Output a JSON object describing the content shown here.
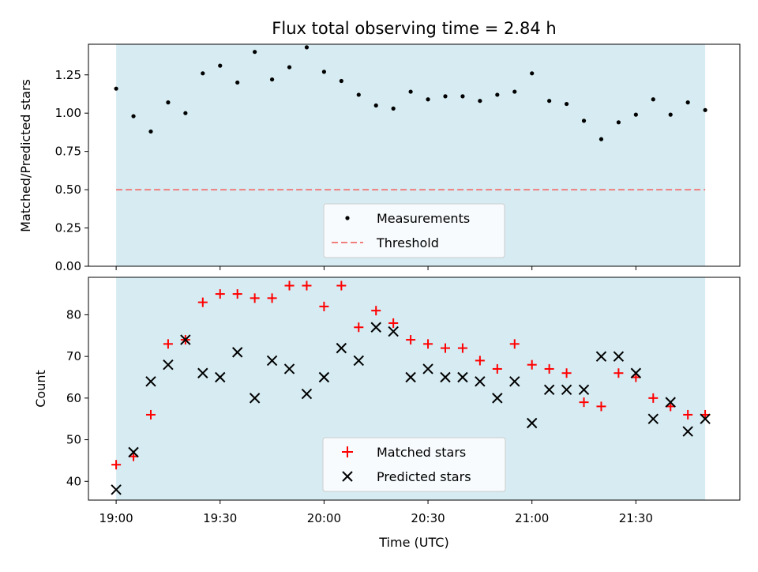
{
  "chart_data": [
    {
      "type": "scatter",
      "title": "Flux total observing time = 2.84 h",
      "xlabel": "",
      "ylabel": "Matched/Predicted stars",
      "ylim": [
        0,
        1.45
      ],
      "yticks": [
        "0.00",
        "0.25",
        "0.50",
        "0.75",
        "1.00",
        "1.25"
      ],
      "x_axis": {
        "type": "time",
        "start": "18:52",
        "end": "22:00"
      },
      "shaded_region": {
        "start": "19:00",
        "end": "21:50",
        "color": "#add8e6"
      },
      "series": [
        {
          "name": "Measurements",
          "marker": "dot",
          "color": "#000000",
          "x": [
            "19:00",
            "19:05",
            "19:10",
            "19:15",
            "19:20",
            "19:25",
            "19:30",
            "19:35",
            "19:40",
            "19:45",
            "19:50",
            "19:55",
            "20:00",
            "20:05",
            "20:10",
            "20:15",
            "20:20",
            "20:25",
            "20:30",
            "20:35",
            "20:40",
            "20:45",
            "20:50",
            "20:55",
            "21:00",
            "21:05",
            "21:10",
            "21:15",
            "21:20",
            "21:25",
            "21:30",
            "21:35",
            "21:40",
            "21:45",
            "21:50"
          ],
          "y": [
            1.16,
            0.98,
            0.88,
            1.07,
            1.0,
            1.26,
            1.31,
            1.2,
            1.4,
            1.22,
            1.3,
            1.43,
            1.27,
            1.21,
            1.12,
            1.05,
            1.03,
            1.14,
            1.09,
            1.11,
            1.11,
            1.08,
            1.12,
            1.14,
            1.26,
            1.08,
            1.06,
            0.95,
            0.83,
            0.94,
            0.99,
            1.09,
            0.99,
            1.07,
            1.02
          ]
        },
        {
          "name": "Threshold",
          "marker": "dashed-line",
          "color": "#f08080",
          "y_const": 0.5,
          "x_span": [
            "19:00",
            "21:50"
          ]
        }
      ],
      "legend": {
        "placement": "lower-center"
      }
    },
    {
      "type": "scatter",
      "title": "",
      "xlabel": "Time (UTC)",
      "ylabel": "Count",
      "ylim": [
        35.5,
        89
      ],
      "yticks": [
        "40",
        "50",
        "60",
        "70",
        "80"
      ],
      "x_axis": {
        "type": "time",
        "start": "18:52",
        "end": "22:00"
      },
      "xticks": [
        "19:00",
        "19:30",
        "20:00",
        "20:30",
        "21:00",
        "21:30"
      ],
      "shaded_region": {
        "start": "19:00",
        "end": "21:50",
        "color": "#add8e6"
      },
      "series": [
        {
          "name": "Matched stars",
          "marker": "plus",
          "color": "#ff0000",
          "x": [
            "19:00",
            "19:05",
            "19:10",
            "19:15",
            "19:20",
            "19:25",
            "19:30",
            "19:35",
            "19:40",
            "19:45",
            "19:50",
            "19:55",
            "20:00",
            "20:05",
            "20:10",
            "20:15",
            "20:20",
            "20:25",
            "20:30",
            "20:35",
            "20:40",
            "20:45",
            "20:50",
            "20:55",
            "21:00",
            "21:05",
            "21:10",
            "21:15",
            "21:20",
            "21:25",
            "21:30",
            "21:35",
            "21:40",
            "21:45",
            "21:50"
          ],
          "y": [
            44,
            46,
            56,
            73,
            74,
            83,
            85,
            85,
            84,
            84,
            87,
            87,
            82,
            87,
            77,
            81,
            78,
            74,
            73,
            72,
            72,
            69,
            67,
            73,
            68,
            67,
            66,
            59,
            58,
            66,
            65,
            60,
            58,
            56,
            56
          ]
        },
        {
          "name": "Predicted stars",
          "marker": "x",
          "color": "#000000",
          "x": [
            "19:00",
            "19:05",
            "19:10",
            "19:15",
            "19:20",
            "19:25",
            "19:30",
            "19:35",
            "19:40",
            "19:45",
            "19:50",
            "19:55",
            "20:00",
            "20:05",
            "20:10",
            "20:15",
            "20:20",
            "20:25",
            "20:30",
            "20:35",
            "20:40",
            "20:45",
            "20:50",
            "20:55",
            "21:00",
            "21:05",
            "21:10",
            "21:15",
            "21:20",
            "21:25",
            "21:30",
            "21:35",
            "21:40",
            "21:45",
            "21:50"
          ],
          "y": [
            38,
            47,
            64,
            68,
            74,
            66,
            65,
            71,
            60,
            69,
            67,
            61,
            65,
            72,
            69,
            77,
            76,
            65,
            67,
            65,
            65,
            64,
            60,
            64,
            54,
            62,
            62,
            62,
            70,
            70,
            66,
            55,
            59,
            52,
            55
          ]
        }
      ],
      "legend": {
        "placement": "lower-center"
      }
    }
  ]
}
